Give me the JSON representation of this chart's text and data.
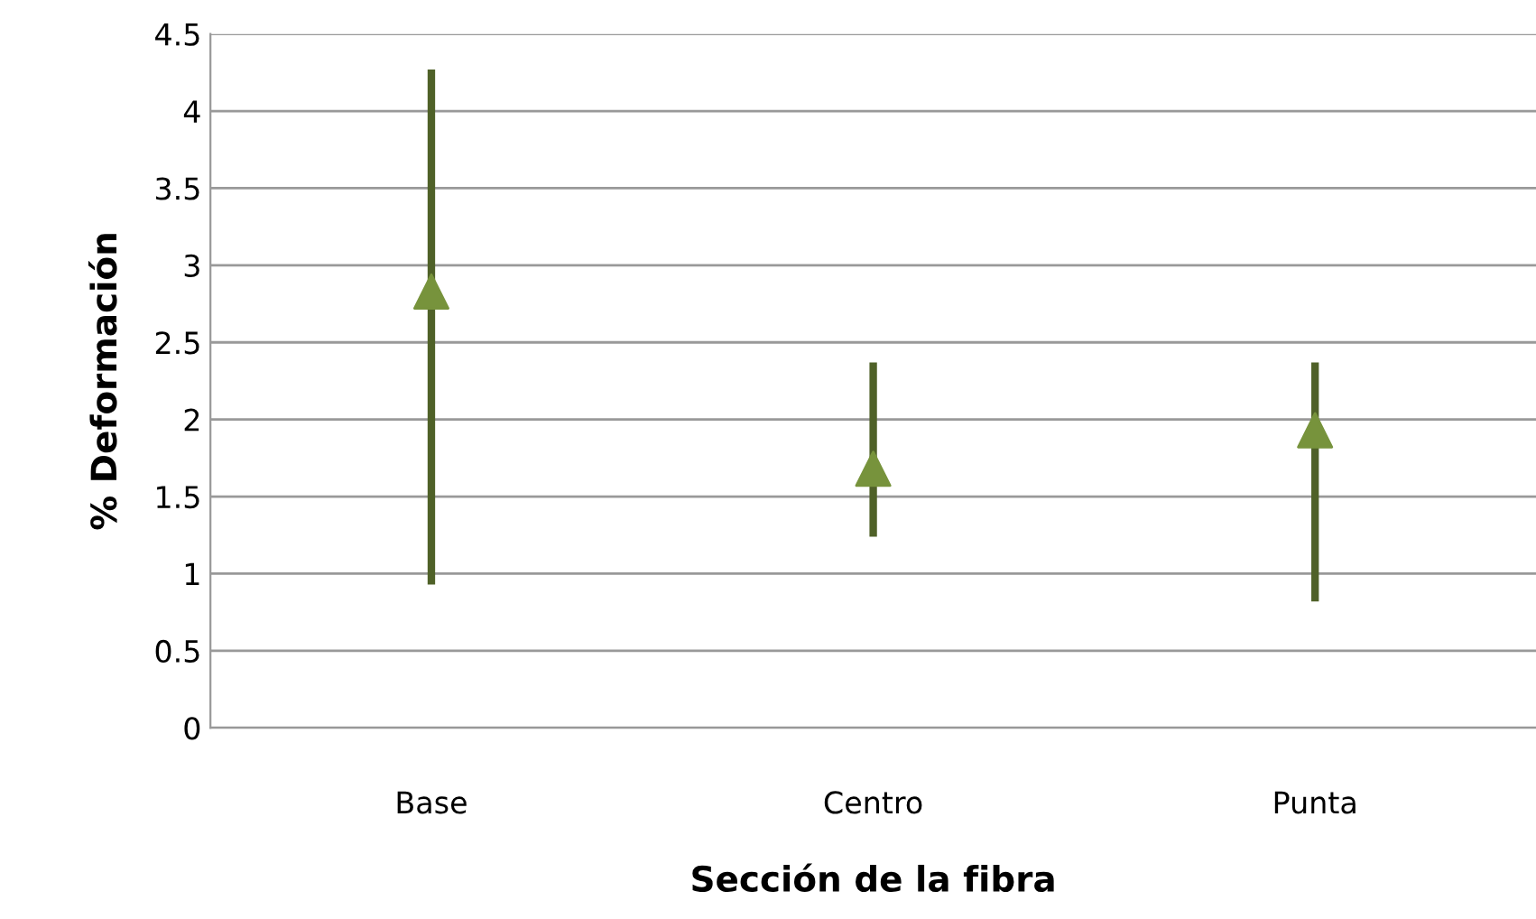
{
  "chart_data": {
    "type": "scatter",
    "xlabel": "Sección de la fibra",
    "ylabel": "% Deformación",
    "categories": [
      "Base",
      "Centro",
      "Punta"
    ],
    "series": [
      {
        "color": "#77933c",
        "values": [
          2.83,
          1.68,
          1.93
        ],
        "errors": [
          [
            0.93,
            4.27
          ],
          [
            1.24,
            2.37
          ],
          [
            0.82,
            2.37
          ]
        ]
      }
    ],
    "ylim": [
      0,
      4.5
    ],
    "yticks": [
      0,
      0.5,
      1,
      1.5,
      2,
      2.5,
      3,
      3.5,
      4,
      4.5
    ],
    "grid": "y",
    "marker": "triangle",
    "legend": false
  }
}
